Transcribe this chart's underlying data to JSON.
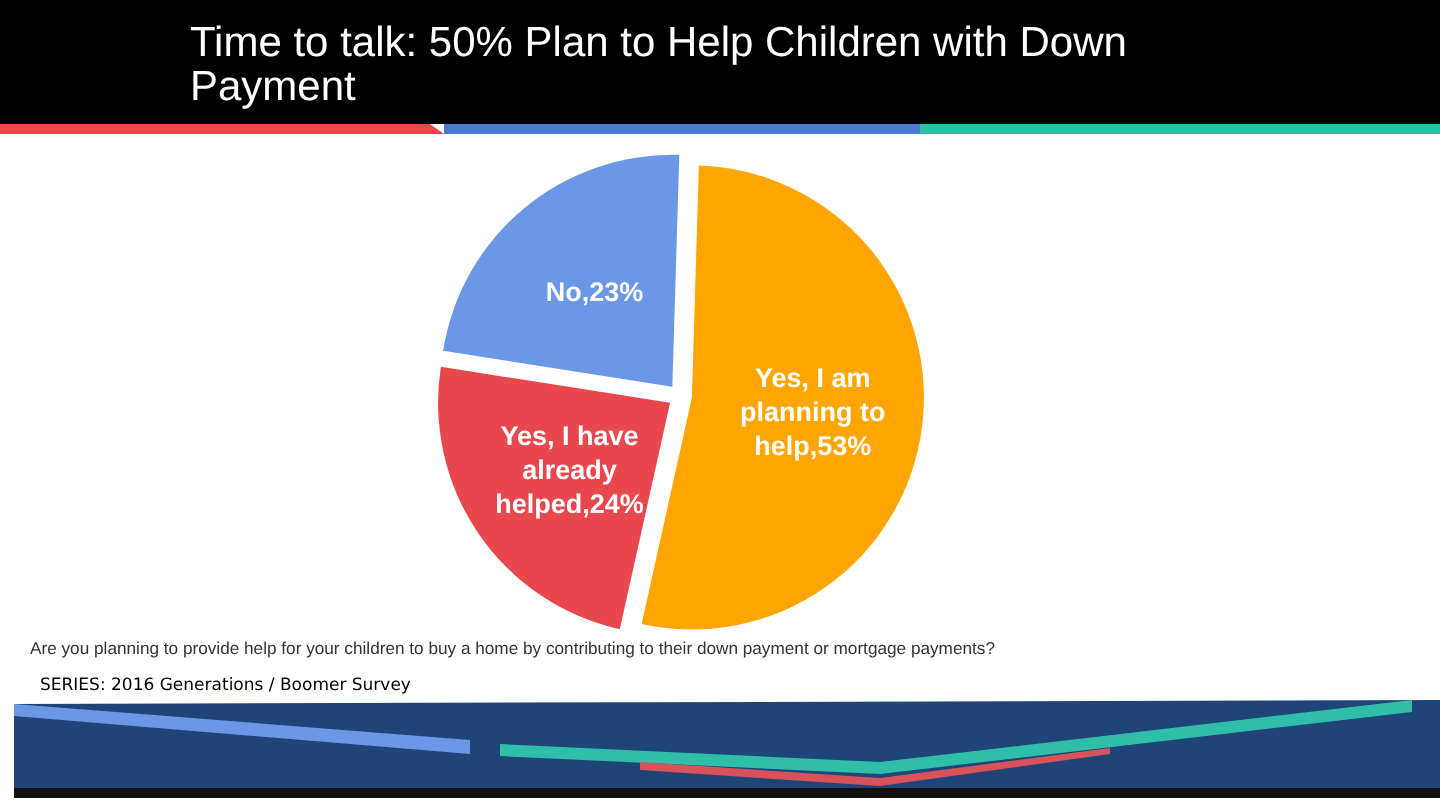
{
  "chart_data": {
    "type": "pie",
    "title": "Time to talk: 50% Plan to Help Children with Down Payment",
    "categories": [
      "Yes, I am planning to help,53%",
      "Yes, I have already helped,24%",
      "No,23%"
    ],
    "values": [
      53,
      24,
      23
    ],
    "colors": [
      "#ffa500",
      "#e8474d",
      "#6a98e6"
    ],
    "legend": false,
    "annotations": [
      "Are you planning to provide help for your children to buy a home by contributing to their down payment or mortgage payments?",
      "SERIES: 2016 Generations / Boomer Survey"
    ]
  }
}
